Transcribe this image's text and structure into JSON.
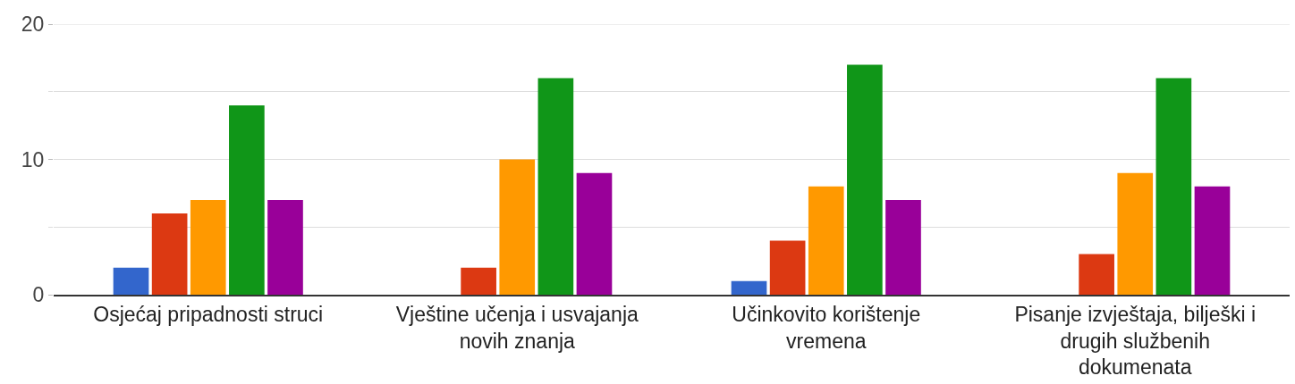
{
  "chart_data": {
    "type": "bar",
    "categories": [
      "Osjećaj pripadnosti struci",
      "Vještine učenja i usvajanja novih znanja",
      "Učinkovito korištenje vremena",
      "Pisanje izvještaja, bilješki i drugih službenih dokumenata"
    ],
    "series": [
      {
        "color": "#3366cc",
        "values": [
          2,
          0,
          1,
          0
        ]
      },
      {
        "color": "#dc3912",
        "values": [
          6,
          2,
          4,
          3
        ]
      },
      {
        "color": "#ff9900",
        "values": [
          7,
          10,
          8,
          9
        ]
      },
      {
        "color": "#109618",
        "values": [
          14,
          16,
          17,
          16
        ]
      },
      {
        "color": "#990099",
        "values": [
          7,
          9,
          7,
          8
        ]
      }
    ],
    "ylim": [
      0,
      20
    ],
    "yticks": [
      0,
      {
        "value": 5,
        "label": null
      },
      10,
      {
        "value": 15,
        "label": null
      },
      20
    ],
    "grid": "y"
  }
}
